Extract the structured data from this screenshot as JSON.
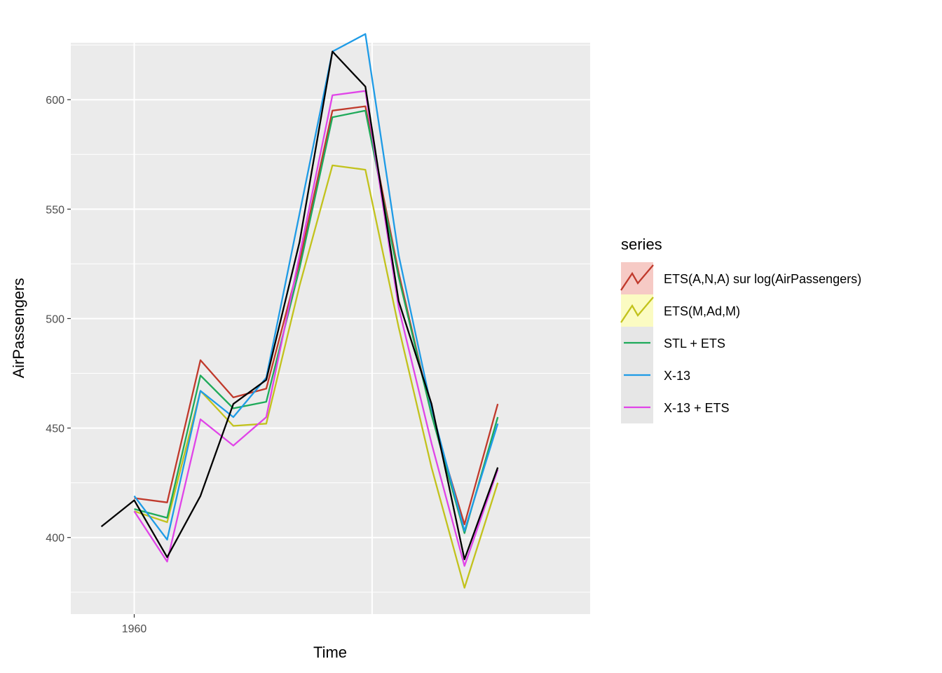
{
  "chart_data": {
    "type": "line",
    "xlabel": "Time",
    "ylabel": "AirPassengers",
    "xlim": [
      1959.84,
      1961.15
    ],
    "ylim": [
      365,
      626
    ],
    "x_ticks": [
      {
        "value": 1960,
        "label": "1960"
      }
    ],
    "x_grid_major": [
      1960,
      1960.6
    ],
    "y_ticks": [
      {
        "value": 400,
        "label": "400"
      },
      {
        "value": 450,
        "label": "450"
      },
      {
        "value": 500,
        "label": "500"
      },
      {
        "value": 550,
        "label": "550"
      },
      {
        "value": 600,
        "label": "600"
      }
    ],
    "y_grid_minor": [
      375,
      425,
      475,
      525,
      575,
      625
    ],
    "grid": true,
    "legend": {
      "title": "series",
      "position": "right"
    },
    "observed": {
      "color": "#000000",
      "x": [
        1959.917,
        1960.0,
        1960.083,
        1960.167,
        1960.25,
        1960.333,
        1960.417,
        1960.5,
        1960.583,
        1960.667,
        1960.75,
        1960.833,
        1960.917
      ],
      "values": [
        405,
        417,
        391,
        419,
        461,
        472,
        535,
        622,
        606,
        508,
        461,
        390,
        432
      ]
    },
    "series": [
      {
        "name": "ETS(A,N,A) sur log(AirPassengers)",
        "color": "#C0392B",
        "x": [
          1960.0,
          1960.083,
          1960.167,
          1960.25,
          1960.333,
          1960.417,
          1960.5,
          1960.583,
          1960.667,
          1960.75,
          1960.833,
          1960.917
        ],
        "values": [
          418,
          416,
          481,
          464,
          468,
          526,
          595,
          597,
          521,
          456,
          406,
          461
        ]
      },
      {
        "name": "ETS(M,Ad,M)",
        "color": "#C2C21C",
        "x": [
          1960.0,
          1960.083,
          1960.167,
          1960.25,
          1960.333,
          1960.417,
          1960.5,
          1960.583,
          1960.667,
          1960.75,
          1960.833,
          1960.917
        ],
        "values": [
          412,
          407,
          467,
          451,
          452,
          515,
          570,
          568,
          496,
          432,
          377,
          425
        ]
      },
      {
        "name": "STL + ETS",
        "color": "#1EAA5A",
        "x": [
          1960.0,
          1960.083,
          1960.167,
          1960.25,
          1960.333,
          1960.417,
          1960.5,
          1960.583,
          1960.667,
          1960.75,
          1960.833,
          1960.917
        ],
        "values": [
          413,
          409,
          474,
          459,
          462,
          523,
          592,
          595,
          519,
          456,
          402,
          455
        ]
      },
      {
        "name": "X-13",
        "color": "#1E9BE6",
        "x": [
          1960.0,
          1960.083,
          1960.167,
          1960.25,
          1960.333,
          1960.417,
          1960.5,
          1960.583,
          1960.667,
          1960.75,
          1960.833,
          1960.917
        ],
        "values": [
          419,
          399,
          467,
          455,
          473,
          548,
          622,
          630,
          529,
          459,
          403,
          452
        ]
      },
      {
        "name": "X-13 + ETS",
        "color": "#E044E8",
        "x": [
          1960.0,
          1960.083,
          1960.167,
          1960.25,
          1960.333,
          1960.417,
          1960.5,
          1960.583,
          1960.667,
          1960.75,
          1960.833,
          1960.917
        ],
        "values": [
          412,
          389,
          454,
          442,
          455,
          529,
          602,
          604,
          505,
          443,
          387,
          431
        ]
      }
    ]
  }
}
